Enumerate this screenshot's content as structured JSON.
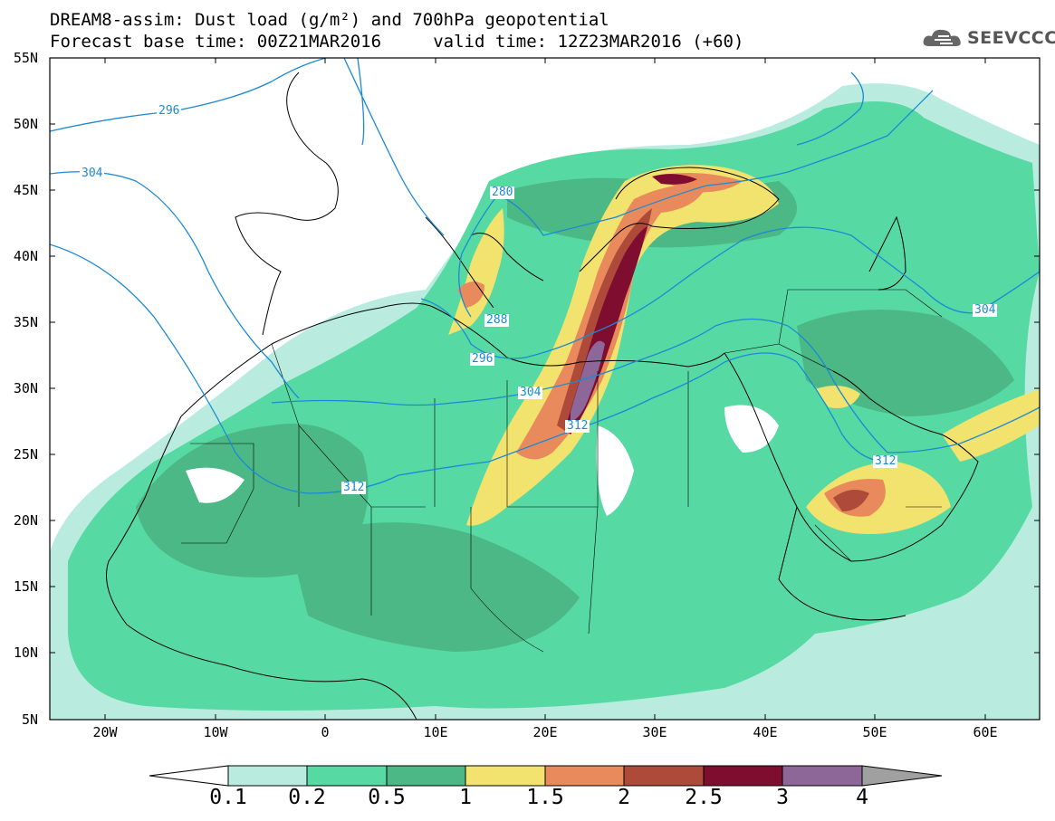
{
  "header": {
    "title_line1": "DREAM8-assim: Dust load (g/m²) and 700hPa geopotential",
    "title_line2": "Forecast base time: 00Z21MAR2016     valid time: 12Z23MAR2016 (+60)",
    "logo_text": "SEEVCCC",
    "logo_icon": "cloud-icon"
  },
  "axes": {
    "lat_labels": [
      "55N",
      "50N",
      "45N",
      "40N",
      "35N",
      "30N",
      "25N",
      "20N",
      "15N",
      "10N",
      "5N"
    ],
    "lon_labels": [
      "20W",
      "10W",
      "0",
      "10E",
      "20E",
      "30E",
      "40E",
      "50E",
      "60E"
    ]
  },
  "contour_labels": [
    "296",
    "304",
    "280",
    "288",
    "296",
    "304",
    "312",
    "312",
    "304",
    "312"
  ],
  "colorbar": {
    "tick_labels": [
      "0.1",
      "0.2",
      "0.5",
      "1",
      "1.5",
      "2",
      "2.5",
      "3",
      "4"
    ],
    "colors": [
      "#ffffff",
      "#b9ecdf",
      "#57d9a4",
      "#4cb886",
      "#f2e26e",
      "#e98a5c",
      "#ad4a3a",
      "#7e0d30",
      "#8c6797",
      "#a0a0a0"
    ]
  },
  "styling": {
    "contour_color": "#1b8ad6",
    "border_color": "#000000"
  }
}
